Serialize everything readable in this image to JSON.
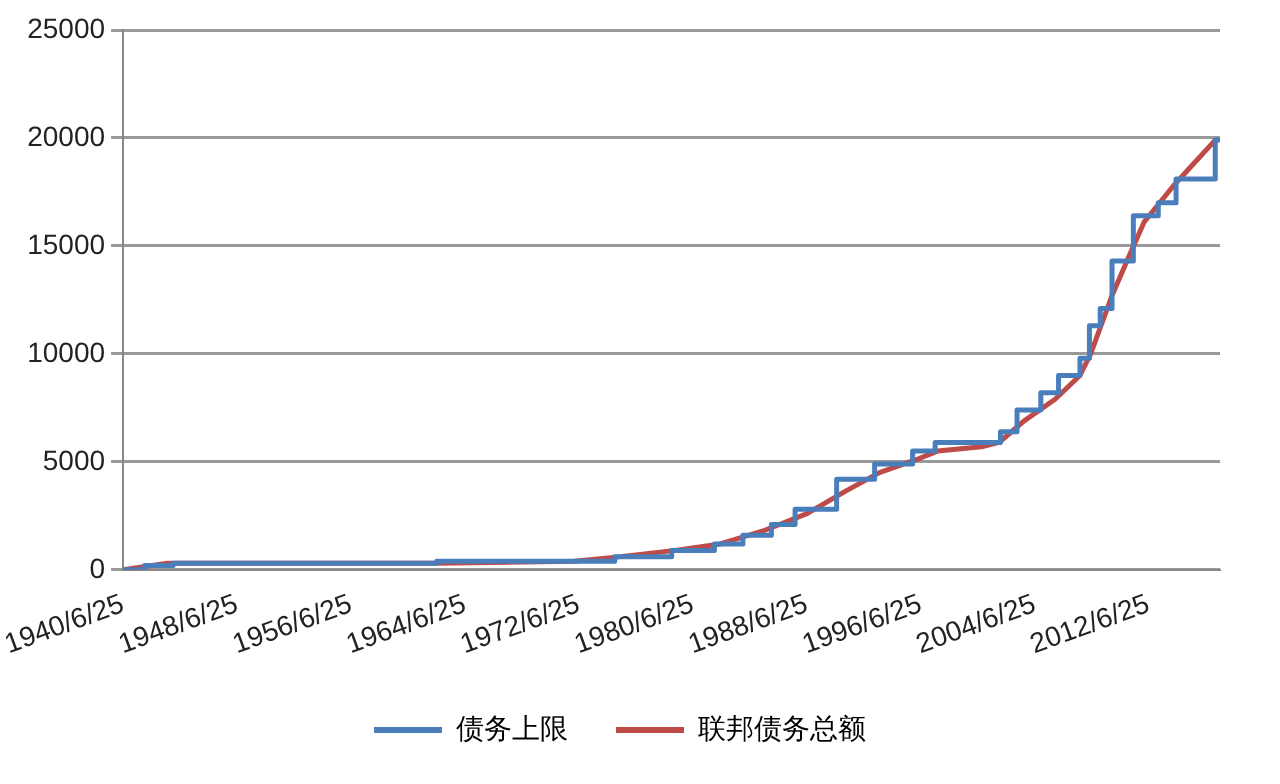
{
  "chart_data": {
    "type": "line",
    "xlim": [
      "1940-06-25",
      "2017-07"
    ],
    "xticks": [
      {
        "value": "1940-06-25",
        "label": "1940/6/25"
      },
      {
        "value": "1948-06-25",
        "label": "1948/6/25"
      },
      {
        "value": "1956-06-25",
        "label": "1956/6/25"
      },
      {
        "value": "1964-06-25",
        "label": "1964/6/25"
      },
      {
        "value": "1972-06-25",
        "label": "1972/6/25"
      },
      {
        "value": "1980-06-25",
        "label": "1980/6/25"
      },
      {
        "value": "1988-06-25",
        "label": "1988/6/25"
      },
      {
        "value": "1996-06-25",
        "label": "1996/6/25"
      },
      {
        "value": "2004-06-25",
        "label": "2004/6/25"
      },
      {
        "value": "2012-06-25",
        "label": "2012/6/25"
      }
    ],
    "ylim": [
      0,
      25000
    ],
    "yticks": [
      0,
      5000,
      10000,
      15000,
      20000,
      25000
    ],
    "grid": "y",
    "legend": "bottom",
    "marker": "none",
    "series": [
      {
        "name": "债务上限",
        "type": "step",
        "color": "#4a7ebb",
        "x": [
          "1940-07",
          "1942-01",
          "1944-01",
          "1962-07",
          "1971-01",
          "1975-01",
          "1979-01",
          "1982-01",
          "1984-01",
          "1986-01",
          "1987-09",
          "1990-08",
          "1993-04",
          "1995-12",
          "1997-07",
          "2002-02",
          "2003-04",
          "2004-12",
          "2006-03",
          "2007-09",
          "2008-05",
          "2009-02",
          "2009-12",
          "2011-06",
          "2013-03",
          "2014-06",
          "2017-03",
          "2017-07"
        ],
        "values": [
          0,
          200,
          300,
          400,
          400,
          600,
          900,
          1200,
          1600,
          2100,
          2800,
          4200,
          4900,
          5500,
          5900,
          6400,
          7400,
          8200,
          9000,
          9800,
          11300,
          12100,
          14300,
          16400,
          17000,
          18100,
          19900,
          19900
        ]
      },
      {
        "name": "联邦债务总额",
        "color": "#be4b48",
        "x": [
          "1940-07",
          "1943-08",
          "1962-07",
          "1972-03",
          "1975-04",
          "1979-04",
          "1982-06",
          "1985-06",
          "1988-07",
          "1991-02",
          "1993-08",
          "1996-03",
          "1997-09",
          "2000-10",
          "2002-01",
          "2003-10",
          "2005-12",
          "2007-09",
          "2008-06",
          "2009-12",
          "2011-03",
          "2012-03",
          "2014-04",
          "2015-07",
          "2017-03"
        ],
        "values": [
          0,
          300,
          300,
          400,
          600,
          900,
          1200,
          1800,
          2600,
          3600,
          4500,
          5100,
          5500,
          5700,
          5900,
          6900,
          7900,
          9000,
          10000,
          12700,
          14600,
          16100,
          17800,
          18700,
          19900
        ]
      }
    ]
  }
}
